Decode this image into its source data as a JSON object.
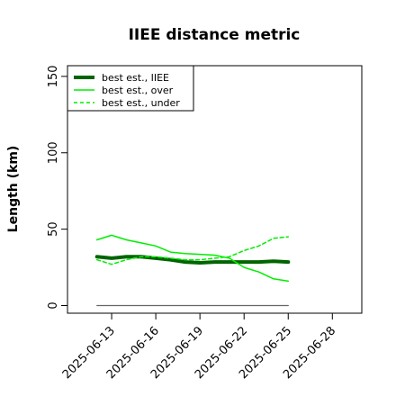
{
  "chart_data": {
    "type": "line",
    "title": "IIEE distance metric",
    "xlabel": "",
    "ylabel": "Length (km)",
    "xlim": [
      "2025-06-10",
      "2025-06-30"
    ],
    "ylim": [
      -5,
      157
    ],
    "yticks": [
      0,
      50,
      100,
      150
    ],
    "xticks": [
      "2025-06-13",
      "2025-06-16",
      "2025-06-19",
      "2025-06-22",
      "2025-06-25",
      "2025-06-28"
    ],
    "grid": false,
    "legend": "top-left",
    "x": [
      "2025-06-12",
      "2025-06-13",
      "2025-06-14",
      "2025-06-15",
      "2025-06-16",
      "2025-06-17",
      "2025-06-18",
      "2025-06-19",
      "2025-06-20",
      "2025-06-21",
      "2025-06-22",
      "2025-06-23",
      "2025-06-24",
      "2025-06-25"
    ],
    "series": [
      {
        "name": "best est., IIEE",
        "color": "#006400",
        "style": "solid",
        "width": 4,
        "values": [
          32,
          31,
          32,
          32,
          31,
          30,
          28.5,
          28,
          28.5,
          28.5,
          28.5,
          28.5,
          29,
          28.5
        ]
      },
      {
        "name": "best est., over",
        "color": "#00ee00",
        "style": "solid",
        "width": 1.5,
        "values": [
          43,
          46,
          43,
          41,
          39,
          35,
          34,
          33.5,
          33,
          31,
          25,
          22,
          17.5,
          16
        ]
      },
      {
        "name": "best est., under",
        "color": "#00ee00",
        "style": "dashed",
        "width": 1.5,
        "values": [
          30,
          27,
          30,
          32,
          32,
          31,
          30,
          30,
          31,
          32,
          36,
          39,
          44,
          45
        ]
      },
      {
        "name": "",
        "color": "#666666",
        "style": "solid",
        "width": 1.2,
        "values": [
          0,
          0,
          0,
          0,
          0,
          0,
          0,
          0,
          0,
          0,
          0,
          0,
          0,
          0
        ]
      }
    ]
  }
}
